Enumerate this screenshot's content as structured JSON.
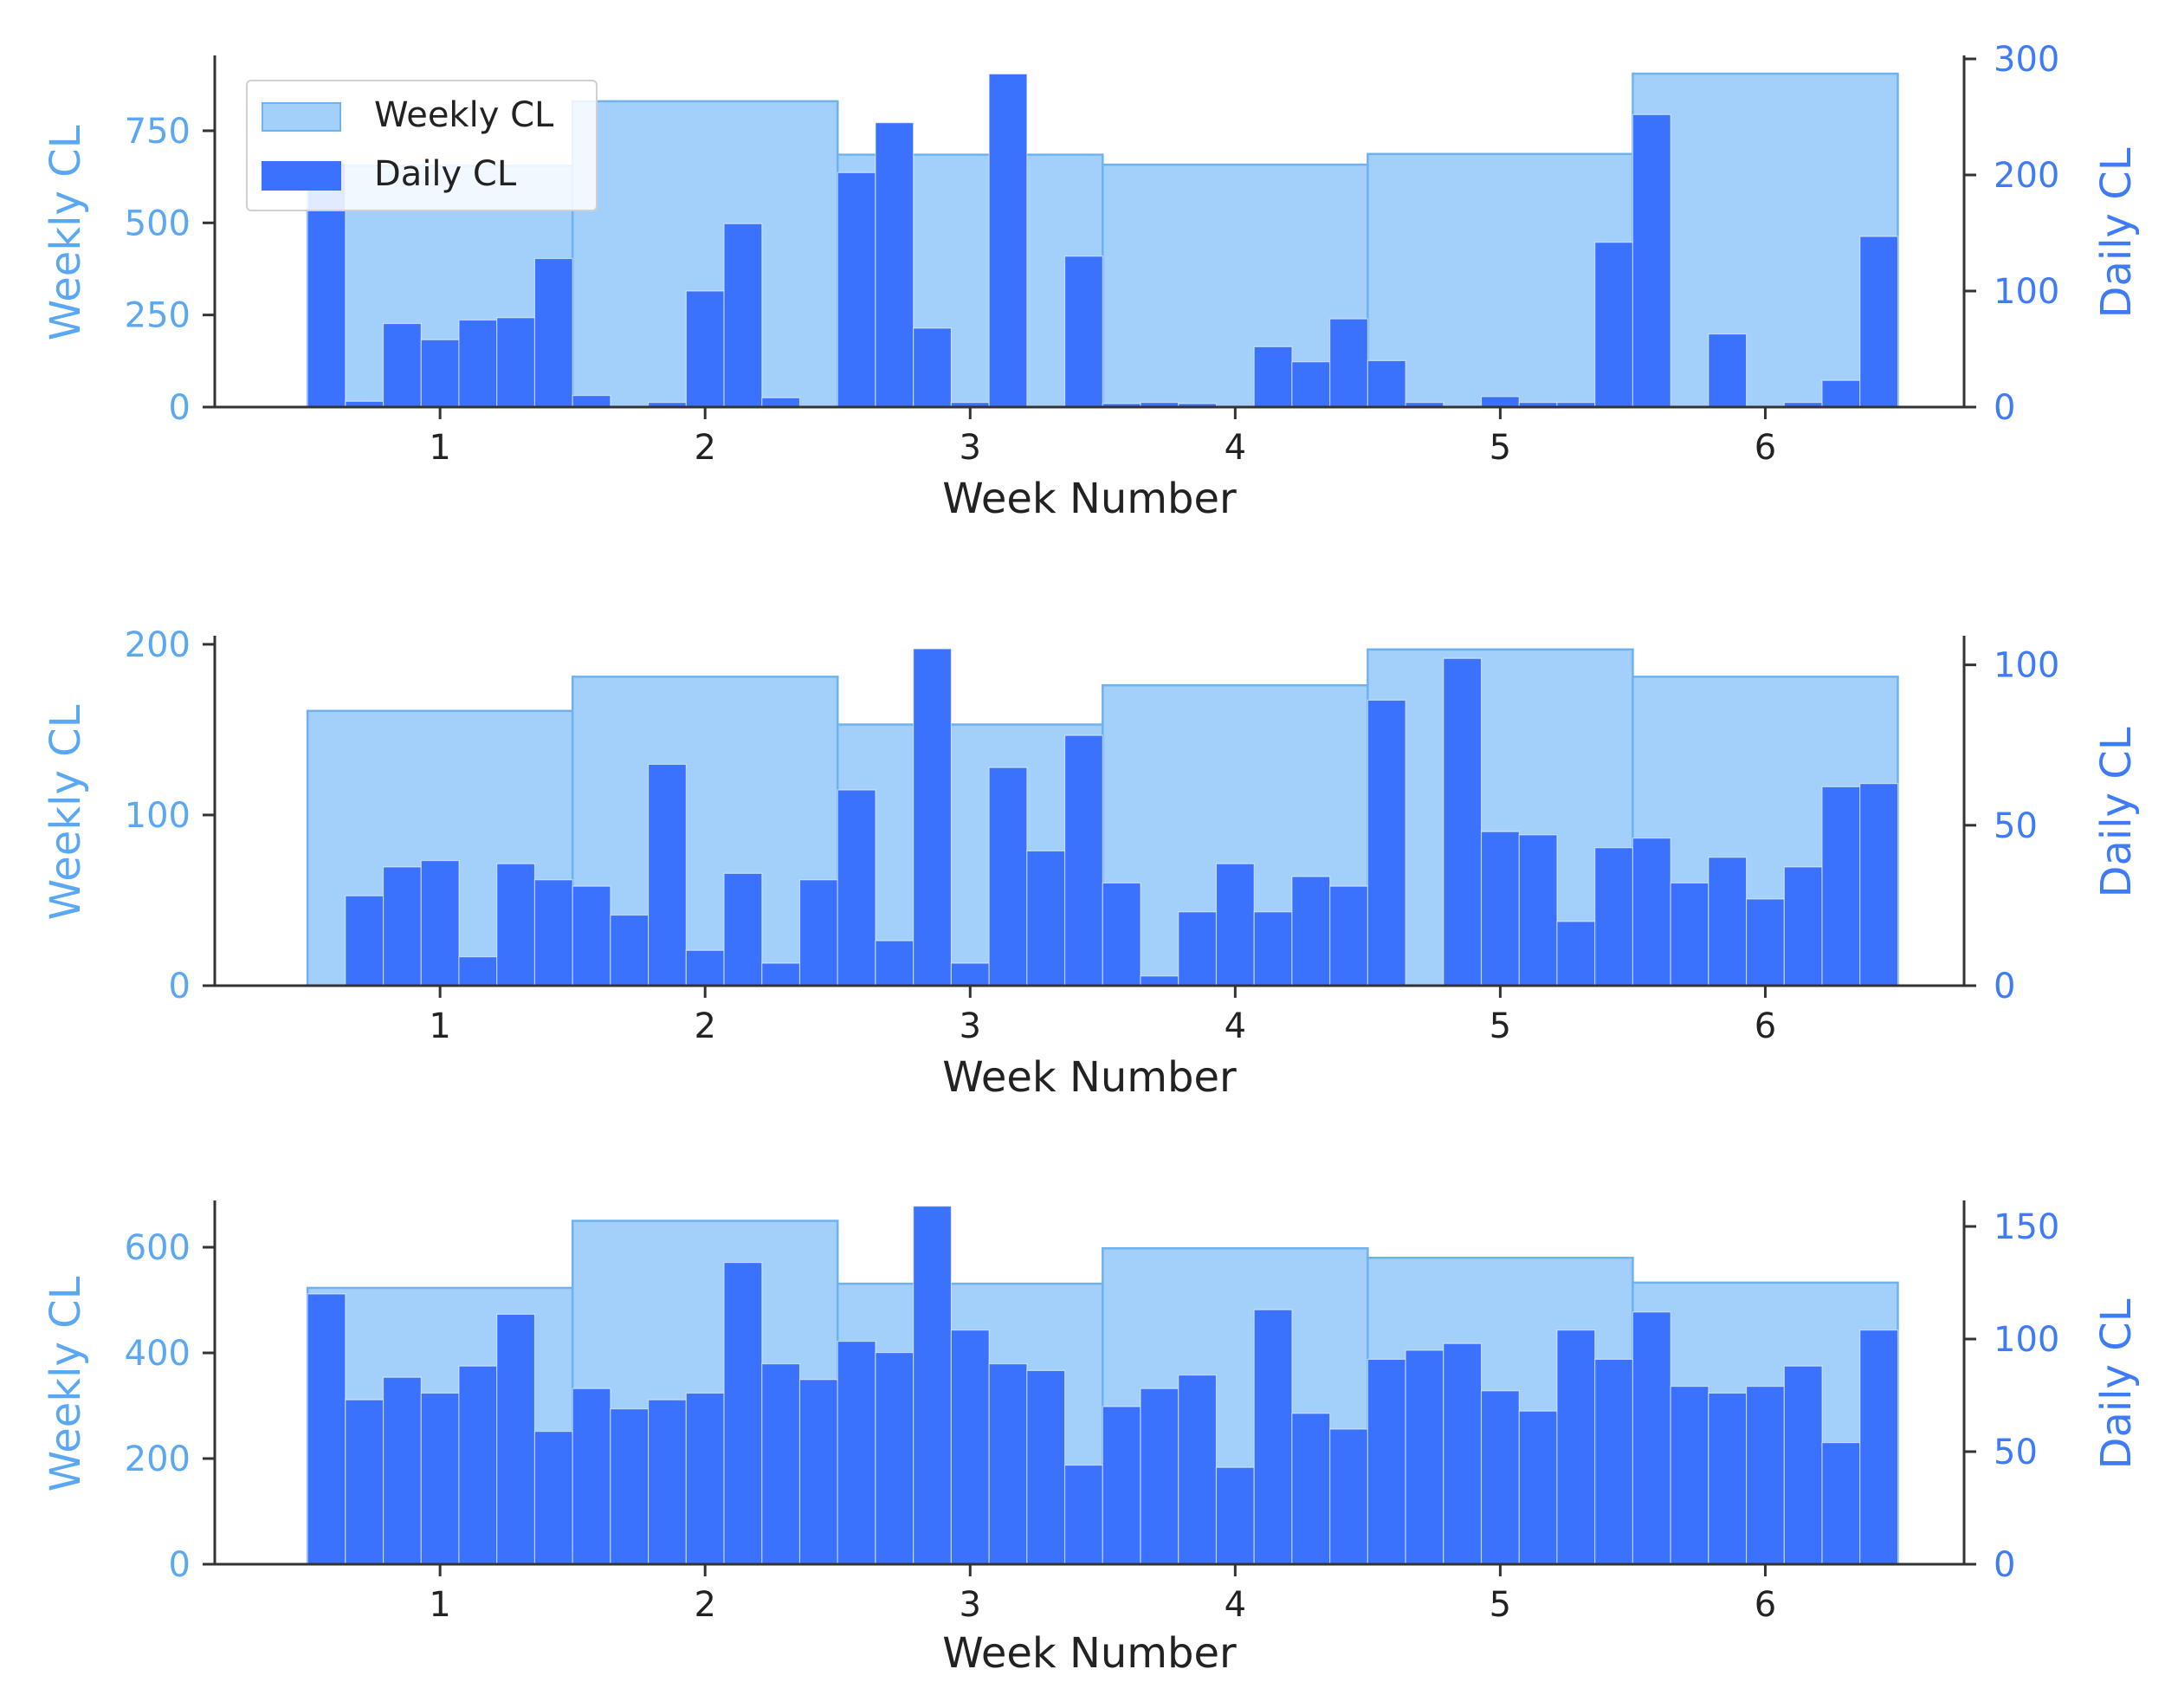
{
  "colors": {
    "weekly_fill": "#a3cffb",
    "weekly_edge": "#6fb2f0",
    "daily_fill": "#3a72fd",
    "left_axis_text": "#5aa8f3",
    "right_axis_text": "#3e7bf6",
    "axis_line": "#333333",
    "tick_text": "#222222"
  },
  "legend": {
    "weekly_label": "Weekly CL",
    "daily_label": "Daily CL"
  },
  "chart_data": [
    {
      "type": "bar",
      "xlabel": "Week Number",
      "ylabel_left": "Weekly CL",
      "ylabel_right": "Daily CL",
      "xlim": [
        0.15,
        6.75
      ],
      "xticks": [
        1,
        2,
        3,
        4,
        5,
        6
      ],
      "xtick_labels": [
        "1",
        "2",
        "3",
        "4",
        "5",
        "6"
      ],
      "ylim_left": [
        0,
        945
      ],
      "yticks_left": [
        0,
        250,
        500,
        750
      ],
      "ytick_labels_left": [
        "0",
        "250",
        "500",
        "750"
      ],
      "ylim_right": [
        0,
        300
      ],
      "yticks_right": [
        0,
        100,
        200,
        300
      ],
      "ytick_labels_right": [
        "0",
        "100",
        "200",
        "300"
      ],
      "legend": true,
      "legend_position": "upper-left",
      "weeks": [
        1,
        2,
        3,
        4,
        5,
        6
      ],
      "weekly_values": [
        655,
        830,
        685,
        658,
        687,
        905
      ],
      "daily_values": [
        210,
        5,
        72,
        58,
        75,
        77,
        128,
        10,
        0,
        4,
        100,
        158,
        8,
        0,
        202,
        245,
        68,
        4,
        287,
        0,
        130,
        3,
        4,
        3,
        0,
        52,
        39,
        76,
        40,
        4,
        0,
        9,
        4,
        4,
        142,
        252,
        0,
        63,
        0,
        4,
        23,
        147
      ]
    },
    {
      "type": "bar",
      "xlabel": "Week Number",
      "ylabel_left": "Weekly CL",
      "ylabel_right": "Daily CL",
      "xlim": [
        0.15,
        6.75
      ],
      "xticks": [
        1,
        2,
        3,
        4,
        5,
        6
      ],
      "xtick_labels": [
        "1",
        "2",
        "3",
        "4",
        "5",
        "6"
      ],
      "ylim_left": [
        0,
        203
      ],
      "yticks_left": [
        0,
        100,
        200
      ],
      "ytick_labels_left": [
        "0",
        "100",
        "200"
      ],
      "ylim_right": [
        0,
        108
      ],
      "yticks_right": [
        0,
        50,
        100
      ],
      "ytick_labels_right": [
        "0",
        "50",
        "100"
      ],
      "legend": false,
      "weeks": [
        1,
        2,
        3,
        4,
        5,
        6
      ],
      "weekly_values": [
        161,
        181,
        153,
        176,
        197,
        181
      ],
      "daily_values": [
        0,
        28,
        37,
        39,
        9,
        38,
        33,
        31,
        22,
        69,
        11,
        35,
        7,
        33,
        61,
        14,
        105,
        7,
        68,
        42,
        78,
        32,
        3,
        23,
        38,
        23,
        34,
        31,
        89,
        0,
        102,
        48,
        47,
        20,
        43,
        46,
        32,
        40,
        27,
        37,
        62,
        63
      ]
    },
    {
      "type": "bar",
      "xlabel": "Week Number",
      "ylabel_left": "Weekly CL",
      "ylabel_right": "Daily CL",
      "xlim": [
        0.15,
        6.75
      ],
      "xticks": [
        1,
        2,
        3,
        4,
        5,
        6
      ],
      "xtick_labels": [
        "1",
        "2",
        "3",
        "4",
        "5",
        "6"
      ],
      "ylim_left": [
        0,
        682
      ],
      "yticks_left": [
        0,
        200,
        400,
        600
      ],
      "ytick_labels_left": [
        "0",
        "200",
        "400",
        "600"
      ],
      "ylim_right": [
        0,
        160
      ],
      "yticks_right": [
        0,
        50,
        100,
        150
      ],
      "ytick_labels_right": [
        "0",
        "50",
        "100",
        "150"
      ],
      "legend": false,
      "weeks": [
        1,
        2,
        3,
        4,
        5,
        6
      ],
      "weekly_values": [
        523,
        650,
        531,
        598,
        580,
        533
      ],
      "daily_values": [
        120,
        73,
        83,
        76,
        88,
        111,
        59,
        78,
        69,
        73,
        76,
        134,
        89,
        82,
        99,
        94,
        159,
        104,
        89,
        86,
        44,
        70,
        78,
        84,
        43,
        113,
        67,
        60,
        91,
        95,
        98,
        77,
        68,
        104,
        91,
        112,
        79,
        76,
        79,
        88,
        54,
        104
      ]
    }
  ]
}
